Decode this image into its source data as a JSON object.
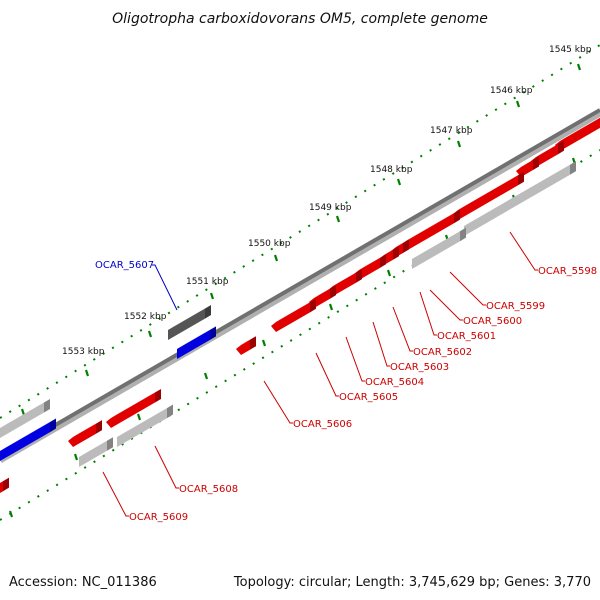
{
  "title": "Oligotropha carboxidovorans OM5, complete genome",
  "footer": {
    "accession": "Accession: NC_011386",
    "summary": "Topology: circular; Length: 3,745,629 bp; Genes: 3,770"
  },
  "ruler_labels": [
    "1545 kbp",
    "1546 kbp",
    "1547 kbp",
    "1548 kbp",
    "1549 kbp",
    "1550 kbp",
    "1551 kbp",
    "1552 kbp",
    "1553 kbp"
  ],
  "gene_labels": [
    {
      "text": "OCAR_5598",
      "strand": "reverse"
    },
    {
      "text": "OCAR_5599",
      "strand": "reverse"
    },
    {
      "text": "OCAR_5600",
      "strand": "reverse"
    },
    {
      "text": "OCAR_5601",
      "strand": "reverse"
    },
    {
      "text": "OCAR_5602",
      "strand": "reverse"
    },
    {
      "text": "OCAR_5603",
      "strand": "reverse"
    },
    {
      "text": "OCAR_5604",
      "strand": "reverse"
    },
    {
      "text": "OCAR_5605",
      "strand": "reverse"
    },
    {
      "text": "OCAR_5606",
      "strand": "reverse"
    },
    {
      "text": "OCAR_5607",
      "strand": "forward"
    },
    {
      "text": "OCAR_5608",
      "strand": "reverse"
    },
    {
      "text": "OCAR_5609",
      "strand": "reverse"
    }
  ],
  "colors": {
    "reverse_gene": "#e00000",
    "forward_gene": "#0000e0",
    "reverse_rna": "#bbbbbb",
    "forward_rna": "#555555",
    "backbone": "#808080",
    "tick": "#008000",
    "label_reverse": "#cc0000",
    "label_forward": "#0000cc"
  }
}
